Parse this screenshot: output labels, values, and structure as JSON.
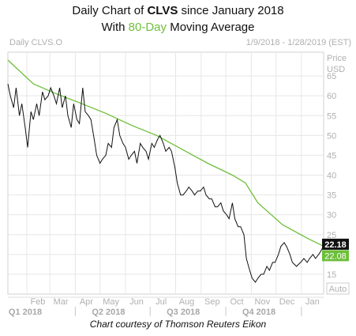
{
  "header": {
    "title_prefix": "Daily Chart of ",
    "ticker": "CLVS",
    "title_suffix": " since January 2018",
    "subtitle_prefix": "With ",
    "ma_period": "80-Day",
    "subtitle_suffix": " Moving Average",
    "chart_label": "Daily CLVS.O",
    "date_range": "1/9/2018 - 1/28/2019 (EST)",
    "price_label": "Price",
    "currency_label": "USD"
  },
  "caption": "Chart courtesy of Thomson Reuters Eikon",
  "colors": {
    "ma_line": "#6dbf3a",
    "price_line": "#111111",
    "grid": "#e6e6e6",
    "last_price_bg": "#111111",
    "ma_value_bg": "#6dbf3a"
  },
  "chart_data": {
    "type": "line",
    "title": "Daily Chart of CLVS since January 2018",
    "subtitle": "With 80-Day Moving Average",
    "ylabel": "Price USD",
    "ylim": [
      10,
      71
    ],
    "y_ticks": [
      15,
      20,
      25,
      30,
      35,
      40,
      45,
      50,
      55,
      60,
      65
    ],
    "x_range": [
      "2018-01-09",
      "2019-01-28"
    ],
    "month_ticks": [
      {
        "label": "Feb",
        "date": "2018-02-01"
      },
      {
        "label": "Mar",
        "date": "2018-03-01"
      },
      {
        "label": "Apr",
        "date": "2018-04-01"
      },
      {
        "label": "May",
        "date": "2018-05-01"
      },
      {
        "label": "Jun",
        "date": "2018-06-01"
      },
      {
        "label": "Jul",
        "date": "2018-07-01"
      },
      {
        "label": "Aug",
        "date": "2018-08-01"
      },
      {
        "label": "Sep",
        "date": "2018-09-01"
      },
      {
        "label": "Oct",
        "date": "2018-10-01"
      },
      {
        "label": "Nov",
        "date": "2018-11-01"
      },
      {
        "label": "Dec",
        "date": "2018-12-01"
      },
      {
        "label": "Jan",
        "date": "2019-01-01"
      }
    ],
    "quarter_ticks": [
      {
        "label": "Q1 2018",
        "date": "2018-01-09"
      },
      {
        "label": "Q2 2018",
        "date": "2018-04-01"
      },
      {
        "label": "Q3 2018",
        "date": "2018-07-01"
      },
      {
        "label": "Q4 2018",
        "date": "2018-10-01"
      }
    ],
    "series": [
      {
        "name": "CLVS.O",
        "x": [
          "2018-01-09",
          "2018-01-12",
          "2018-01-16",
          "2018-01-19",
          "2018-01-23",
          "2018-01-26",
          "2018-01-30",
          "2018-02-02",
          "2018-02-06",
          "2018-02-09",
          "2018-02-13",
          "2018-02-16",
          "2018-02-20",
          "2018-02-23",
          "2018-02-27",
          "2018-03-02",
          "2018-03-06",
          "2018-03-09",
          "2018-03-13",
          "2018-03-16",
          "2018-03-20",
          "2018-03-23",
          "2018-03-27",
          "2018-03-30",
          "2018-04-03",
          "2018-04-06",
          "2018-04-10",
          "2018-04-13",
          "2018-04-17",
          "2018-04-20",
          "2018-04-24",
          "2018-04-27",
          "2018-05-01",
          "2018-05-04",
          "2018-05-08",
          "2018-05-11",
          "2018-05-15",
          "2018-05-18",
          "2018-05-22",
          "2018-05-25",
          "2018-05-29",
          "2018-06-01",
          "2018-06-05",
          "2018-06-08",
          "2018-06-12",
          "2018-06-15",
          "2018-06-19",
          "2018-06-22",
          "2018-06-26",
          "2018-06-29",
          "2018-07-03",
          "2018-07-06",
          "2018-07-10",
          "2018-07-13",
          "2018-07-17",
          "2018-07-20",
          "2018-07-24",
          "2018-07-27",
          "2018-07-31",
          "2018-08-03",
          "2018-08-07",
          "2018-08-10",
          "2018-08-14",
          "2018-08-17",
          "2018-08-21",
          "2018-08-24",
          "2018-08-28",
          "2018-08-31",
          "2018-09-04",
          "2018-09-07",
          "2018-09-11",
          "2018-09-14",
          "2018-09-18",
          "2018-09-21",
          "2018-09-25",
          "2018-09-28",
          "2018-10-02",
          "2018-10-05",
          "2018-10-09",
          "2018-10-12",
          "2018-10-16",
          "2018-10-19",
          "2018-10-23",
          "2018-10-26",
          "2018-10-30",
          "2018-11-02",
          "2018-11-06",
          "2018-11-09",
          "2018-11-13",
          "2018-11-16",
          "2018-11-20",
          "2018-11-23",
          "2018-11-27",
          "2018-11-30",
          "2018-12-04",
          "2018-12-07",
          "2018-12-11",
          "2018-12-14",
          "2018-12-18",
          "2018-12-21",
          "2018-12-26",
          "2018-12-31",
          "2019-01-04",
          "2019-01-08",
          "2019-01-11",
          "2019-01-15",
          "2019-01-18",
          "2019-01-22",
          "2019-01-25",
          "2019-01-28"
        ],
        "values": [
          63,
          60,
          57,
          62,
          55,
          58,
          52,
          47,
          56,
          54,
          58,
          55,
          61,
          59,
          60,
          62,
          60,
          58,
          62,
          57,
          60,
          55,
          52,
          58,
          54,
          53,
          62,
          56,
          55,
          54,
          49,
          45,
          43,
          44,
          45,
          48,
          47,
          52,
          54,
          50,
          48,
          47,
          44,
          45,
          46,
          43,
          48,
          47,
          46,
          44,
          48,
          47,
          49,
          50,
          48,
          46,
          47,
          46,
          42,
          38,
          35,
          35,
          36,
          37,
          36,
          35,
          36,
          36,
          37,
          35,
          34,
          34,
          32,
          32,
          33,
          31,
          30,
          29,
          33,
          29,
          27,
          27,
          25,
          19,
          16,
          14,
          13,
          14,
          15,
          15,
          17,
          16,
          18,
          18,
          20,
          22,
          23,
          22,
          20,
          18,
          17,
          18,
          19,
          18,
          19,
          20,
          19,
          20,
          21,
          22.18
        ]
      },
      {
        "name": "80-Day Moving Average",
        "x": [
          "2018-01-09",
          "2018-02-09",
          "2018-03-09",
          "2018-04-09",
          "2018-05-09",
          "2018-06-09",
          "2018-07-09",
          "2018-08-09",
          "2018-09-09",
          "2018-10-09",
          "2018-10-25",
          "2018-11-09",
          "2018-12-09",
          "2019-01-09",
          "2019-01-28"
        ],
        "values": [
          69,
          63,
          60.5,
          58,
          55.5,
          52.5,
          50,
          46.5,
          43,
          40,
          38,
          33,
          27.5,
          24,
          22.08
        ]
      }
    ],
    "last_price": "22.18",
    "ma_last": "22.08",
    "auto_label": "Auto"
  }
}
